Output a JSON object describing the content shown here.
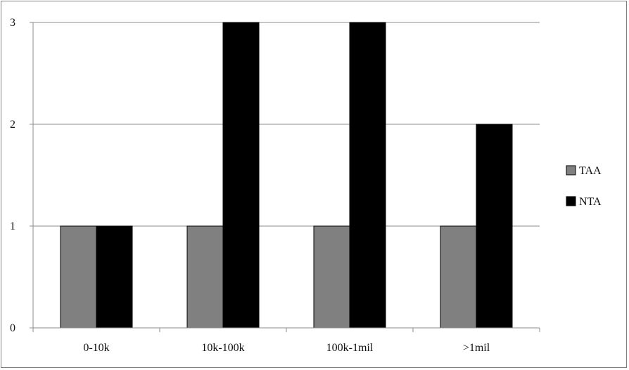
{
  "chart_data": {
    "type": "bar",
    "categories": [
      "0-10k",
      "10k-100k",
      "100k-1mil",
      ">1mil"
    ],
    "series": [
      {
        "name": "TAA",
        "values": [
          1,
          1,
          1,
          1
        ],
        "color": "#808080"
      },
      {
        "name": "NTA",
        "values": [
          1,
          3,
          3,
          2
        ],
        "color": "#000000"
      }
    ],
    "title": "",
    "xlabel": "",
    "ylabel": "",
    "ylim": [
      0,
      3
    ],
    "yticks": [
      0,
      1,
      2,
      3
    ],
    "grid": true,
    "legend_position": "right"
  }
}
